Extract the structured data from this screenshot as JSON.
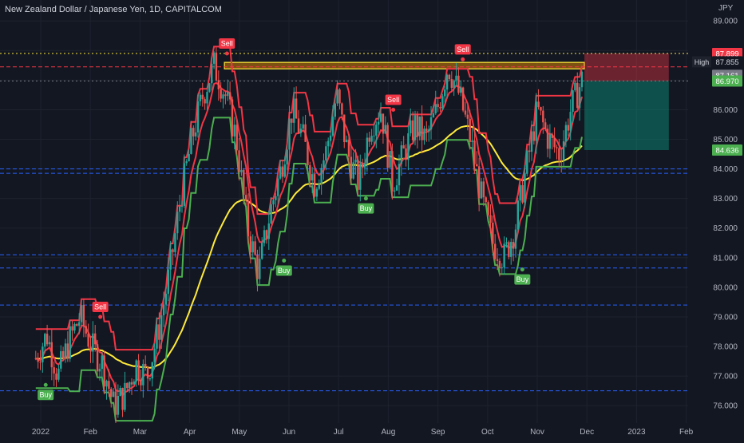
{
  "header": {
    "title": "New Zealand Dollar / Japanese Yen, 1D, CAPITALCOM"
  },
  "chart_data": {
    "type": "candlestick",
    "title": "New Zealand Dollar / Japanese Yen, 1D, CAPITALCOM",
    "currency": "JPY",
    "ylim": [
      75.6,
      89.6
    ],
    "y_ticks": [
      "89.000",
      "88.000",
      "87.000",
      "86.000",
      "85.000",
      "84.000",
      "83.000",
      "82.000",
      "81.000",
      "80.000",
      "79.000",
      "78.000",
      "77.000",
      "76.000"
    ],
    "x_ticks": [
      "2022",
      "Feb",
      "Mar",
      "Apr",
      "May",
      "Jun",
      "Jul",
      "Aug",
      "Sep",
      "Oct",
      "Nov",
      "Dec",
      "2023",
      "Feb"
    ],
    "x_tick_month_index": [
      0,
      1,
      2,
      3,
      4,
      5,
      6,
      7,
      8,
      9,
      10,
      11,
      12,
      13
    ],
    "price_closes": [
      77.6,
      78.4,
      77.0,
      78.2,
      79.0,
      78.0,
      77.4,
      76.0,
      76.4,
      77.4,
      77.0,
      78.5,
      80.5,
      83.0,
      85.0,
      86.5,
      87.5,
      86.5,
      85.0,
      82.0,
      80.5,
      82.5,
      84.0,
      86.0,
      85.0,
      83.5,
      84.5,
      86.5,
      84.5,
      83.5,
      85.5,
      86.0,
      83.5,
      84.5,
      85.5,
      85.0,
      86.0,
      87.5,
      86.5,
      85.0,
      83.0,
      81.5,
      81.0,
      82.0,
      84.0,
      86.0,
      85.0,
      84.5,
      86.0,
      87.0
    ],
    "indicators": {
      "trend_line_color": "#ffeb3b",
      "fast_line_color": "#f23645",
      "support_band_color": "#4caf50",
      "resistance_band_color": "#f23645"
    },
    "signals": [
      {
        "label": "Sell",
        "month": 3.75,
        "price": 87.9
      },
      {
        "label": "Sell",
        "month": 8.5,
        "price": 87.7
      },
      {
        "label": "Sell",
        "month": 7.1,
        "price": 86.0
      },
      {
        "label": "Sell",
        "month": 1.2,
        "price": 79.0
      },
      {
        "label": "Buy",
        "month": 0.1,
        "price": 76.7
      },
      {
        "label": "Buy",
        "month": 4.9,
        "price": 80.9
      },
      {
        "label": "Buy",
        "month": 6.55,
        "price": 83.0
      },
      {
        "label": "Buy",
        "month": 9.7,
        "price": 80.6
      }
    ],
    "horizontal_levels": [
      {
        "price": 87.899,
        "color": "#ffeb3b",
        "style": "dotted"
      },
      {
        "price": 87.45,
        "color": "#f23645",
        "style": "dashed"
      },
      {
        "price": 86.97,
        "color": "#787b86",
        "style": "dotted"
      },
      {
        "price": 84.0,
        "color": "#2962ff",
        "style": "dashed"
      },
      {
        "price": 83.85,
        "color": "#2962ff",
        "style": "dashed"
      },
      {
        "price": 81.1,
        "color": "#2962ff",
        "style": "dashed"
      },
      {
        "price": 80.65,
        "color": "#2962ff",
        "style": "dashed"
      },
      {
        "price": 79.4,
        "color": "#2962ff",
        "style": "dashed"
      },
      {
        "price": 76.5,
        "color": "#2962ff",
        "style": "dashed"
      }
    ],
    "resistance_zone": {
      "price_low": 87.38,
      "price_high": 87.6,
      "month_start": 3.7,
      "month_end": 10.95
    },
    "position": {
      "month_start": 10.95,
      "month_end": 12.65,
      "stop_price": 87.899,
      "entry_price": 86.97,
      "target_price": 84.636,
      "stop_color": "#f23645",
      "target_color": "#089981"
    },
    "price_labels": [
      {
        "text": "87.899",
        "price": 87.899,
        "bg": "#f23645",
        "color": "#ffffff"
      },
      {
        "text": "87.855",
        "price": 87.62,
        "bg": "#131722",
        "color": "#d1d4dc",
        "tag": "High"
      },
      {
        "text": "87.161",
        "price": 87.161,
        "bg": "#787b86",
        "color": "#ffffff"
      },
      {
        "text": "86.970",
        "price": 86.97,
        "bg": "#4caf50",
        "color": "#ffffff"
      },
      {
        "text": "84.636",
        "price": 84.636,
        "bg": "#4caf50",
        "color": "#ffffff"
      }
    ]
  }
}
